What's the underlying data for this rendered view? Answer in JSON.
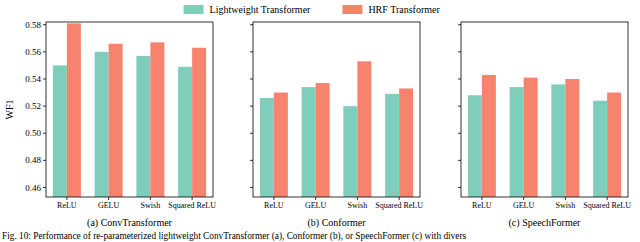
{
  "chart_data": [
    {
      "type": "bar",
      "title": "(a) ConvTransformer",
      "y_label": "WF1",
      "legend": "top",
      "categories": [
        "ReLU",
        "GELU",
        "Swish",
        "Squared ReLU"
      ],
      "series": [
        {
          "name": "Lightweight Transformer",
          "color": "#7fcdbb",
          "values": [
            0.55,
            0.56,
            0.557,
            0.549
          ]
        },
        {
          "name": "HRF Transformer",
          "color": "#f7836f",
          "values": [
            0.581,
            0.566,
            0.567,
            0.563
          ]
        }
      ],
      "ylim": [
        0.453,
        0.582
      ],
      "yticks": [
        0.46,
        0.48,
        {
          "value": 0.5,
          "label": "0.50"
        },
        0.52,
        0.54,
        0.56,
        0.58
      ]
    },
    {
      "type": "bar",
      "title": "(b) Conformer",
      "tick_labels": "x",
      "categories": [
        "ReLU",
        "GELU",
        "Swish",
        "Squared ReLU"
      ],
      "series": [
        {
          "color": "#7fcdbb",
          "values": [
            0.526,
            0.534,
            0.52,
            0.529
          ]
        },
        {
          "color": "#f7836f",
          "values": [
            0.53,
            0.537,
            0.553,
            0.533
          ]
        }
      ],
      "ylim": [
        0.453,
        0.582
      ],
      "yticks": [
        0.46,
        0.48,
        {
          "value": 0.5,
          "label": "0.50"
        },
        0.52,
        0.54,
        0.56,
        0.58
      ]
    },
    {
      "type": "bar",
      "title": "(c) SpeechFormer",
      "tick_labels": "x",
      "categories": [
        "ReLU",
        "GELU",
        "Swish",
        "Squared ReLU"
      ],
      "series": [
        {
          "color": "#7fcdbb",
          "values": [
            0.528,
            0.534,
            0.536,
            0.524
          ]
        },
        {
          "color": "#f7836f",
          "values": [
            0.543,
            0.541,
            0.54,
            0.53
          ]
        }
      ],
      "ylim": [
        0.453,
        0.582
      ],
      "yticks": [
        0.46,
        0.48,
        {
          "value": 0.5,
          "label": "0.50"
        },
        0.52,
        0.54,
        0.56,
        0.58
      ]
    }
  ],
  "caption": "Fig. 10: Performance of re-parameterized lightweight ConvTransformer (a), Conformer (b), or SpeechFormer (c) with divers"
}
